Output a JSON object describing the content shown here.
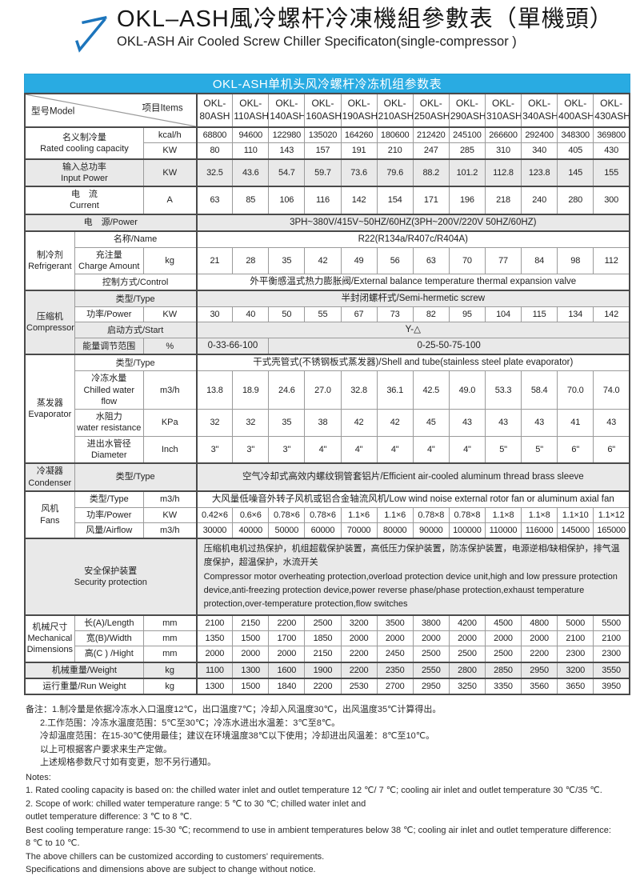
{
  "header": {
    "title_cn": "OKL–ASH風冷螺杆冷凍機組參數表（單機頭）",
    "title_en": "OKL-ASH Air Cooled Screw Chiller Specificaton(single-compressor )",
    "logo_icon": "arrow-up-right-icon"
  },
  "colors": {
    "caption_bg": "#29abe2",
    "row_shade": "#e9e9e9",
    "grid_line": "#9b9b9b",
    "section_line": "#4a4a4a",
    "accent_blue": "#1c75bc"
  },
  "table": {
    "caption": "OKL-ASH单机头风冷螺杆冷冻机组参数表",
    "corner": {
      "model": "型号Model",
      "items": "项目Items"
    },
    "models": [
      "OKL-80ASH",
      "OKL-110ASH",
      "OKL-140ASH",
      "OKL-160ASH",
      "OKL-190ASH",
      "OKL-210ASH",
      "OKL-250ASH",
      "OKL-290ASH",
      "OKL-310ASH",
      "OKL-340ASH",
      "OKL-400ASH",
      "OKL-430ASH"
    ],
    "rows": [
      {
        "top": true,
        "cells": [
          {
            "t": "名义制冷量\nRated cooling capacity",
            "cs": 2,
            "rs": 2,
            "c": "lab"
          },
          {
            "t": "kcal/h",
            "c": "unit",
            "e": true
          }
        ],
        "values": [
          "68800",
          "94600",
          "122980",
          "135020",
          "164260",
          "180600",
          "212420",
          "245100",
          "266600",
          "292400",
          "348300",
          "369800"
        ]
      },
      {
        "cells": [
          {
            "t": "KW",
            "c": "unit",
            "e": true
          }
        ],
        "values": [
          "80",
          "110",
          "143",
          "157",
          "191",
          "210",
          "247",
          "285",
          "310",
          "340",
          "405",
          "430"
        ]
      },
      {
        "top": true,
        "shade": true,
        "cells": [
          {
            "t": "输入总功率\nInput Power",
            "cs": 2,
            "c": "lab"
          },
          {
            "t": "KW",
            "c": "unit",
            "e": true
          }
        ],
        "values": [
          "32.5",
          "43.6",
          "54.7",
          "59.7",
          "73.6",
          "79.6",
          "88.2",
          "101.2",
          "112.8",
          "123.8",
          "145",
          "155"
        ]
      },
      {
        "top": true,
        "cells": [
          {
            "t": "电　流\nCurrent",
            "cs": 2,
            "c": "lab"
          },
          {
            "t": "A",
            "c": "unit",
            "e": true
          }
        ],
        "values": [
          "63",
          "85",
          "106",
          "116",
          "142",
          "154",
          "171",
          "196",
          "218",
          "240",
          "280",
          "300"
        ]
      },
      {
        "top": true,
        "shade": true,
        "cells": [
          {
            "t": "电　源/Power",
            "cs": 3,
            "c": "lab",
            "e": true
          },
          {
            "t": "3PH~380V/415V~50HZ/60HZ(3PH~200V/220V 50HZ/60HZ)",
            "cs": 12,
            "c": "span"
          }
        ]
      },
      {
        "top": true,
        "cells": [
          {
            "t": "制冷剂\nRefrigerant",
            "rs": 3,
            "c": "sec"
          },
          {
            "t": "名称/Name",
            "cs": 2,
            "c": "lab",
            "e": true
          },
          {
            "t": "R22(R134a/R407c/R404A)",
            "cs": 12,
            "c": "span"
          }
        ]
      },
      {
        "cells": [
          {
            "t": "充注量\nCharge Amount",
            "c": "lab"
          },
          {
            "t": "kg",
            "c": "unit",
            "e": true
          }
        ],
        "values": [
          "21",
          "28",
          "35",
          "42",
          "49",
          "56",
          "63",
          "70",
          "77",
          "84",
          "98",
          "112"
        ]
      },
      {
        "cells": [
          {
            "t": "控制方式/Control",
            "cs": 2,
            "c": "lab",
            "e": true
          },
          {
            "t": "外平衡感温式热力膨胀阀/External balance temperature thermal expansion valve",
            "cs": 12,
            "c": "span"
          }
        ]
      },
      {
        "top": true,
        "shade": true,
        "cells": [
          {
            "t": "压缩机\nCompressor",
            "rs": 4,
            "c": "sec"
          },
          {
            "t": "类型/Type",
            "cs": 2,
            "c": "lab",
            "e": true
          },
          {
            "t": "半封闭螺杆式/Semi-hermetic screw",
            "cs": 12,
            "c": "span"
          }
        ]
      },
      {
        "cells": [
          {
            "t": "功率/Power",
            "c": "lab"
          },
          {
            "t": "KW",
            "c": "unit",
            "e": true
          }
        ],
        "values": [
          "30",
          "40",
          "50",
          "55",
          "67",
          "73",
          "82",
          "95",
          "104",
          "115",
          "134",
          "142"
        ]
      },
      {
        "shade": true,
        "cells": [
          {
            "t": "启动方式/Start",
            "cs": 2,
            "c": "lab",
            "e": true
          },
          {
            "t": "Y-△",
            "cs": 12,
            "c": "span"
          }
        ]
      },
      {
        "shade": true,
        "cells": [
          {
            "t": "能量调节范围",
            "c": "lab"
          },
          {
            "t": "%",
            "c": "unit",
            "e": true
          },
          {
            "t": "0-33-66-100",
            "cs": 2,
            "c": "span"
          },
          {
            "t": "0-25-50-75-100",
            "cs": 10,
            "c": "span"
          }
        ]
      },
      {
        "top": true,
        "cells": [
          {
            "t": "蒸发器\nEvaporator",
            "rs": 4,
            "c": "sec"
          },
          {
            "t": "类型/Type",
            "cs": 2,
            "c": "lab",
            "e": true
          },
          {
            "t": "干式壳管式(不锈钢板式蒸发器)/Shell and tube(stainless steel plate evaporator)",
            "cs": 12,
            "c": "span"
          }
        ]
      },
      {
        "cells": [
          {
            "t": "冷冻水量\nChilled water flow",
            "c": "lab"
          },
          {
            "t": "m3/h",
            "c": "unit",
            "e": true
          }
        ],
        "values": [
          "13.8",
          "18.9",
          "24.6",
          "27.0",
          "32.8",
          "36.1",
          "42.5",
          "49.0",
          "53.3",
          "58.4",
          "70.0",
          "74.0"
        ]
      },
      {
        "cells": [
          {
            "t": "水阻力\nwater resistance",
            "c": "lab"
          },
          {
            "t": "KPa",
            "c": "unit",
            "e": true
          }
        ],
        "values": [
          "32",
          "32",
          "35",
          "38",
          "42",
          "42",
          "45",
          "43",
          "43",
          "43",
          "41",
          "43"
        ]
      },
      {
        "cells": [
          {
            "t": "进出水管径\nDiameter",
            "c": "lab"
          },
          {
            "t": "Inch",
            "c": "unit",
            "e": true
          }
        ],
        "values": [
          "3\"",
          "3\"",
          "3\"",
          "4\"",
          "4\"",
          "4\"",
          "4\"",
          "4\"",
          "5\"",
          "5\"",
          "6\"",
          "6\""
        ]
      },
      {
        "top": true,
        "shade": true,
        "cells": [
          {
            "t": "冷凝器\nCondenser",
            "c": "sec"
          },
          {
            "t": "类型/Type",
            "cs": 2,
            "c": "lab",
            "e": true
          },
          {
            "t": "空气冷却式高效内螺纹铜管套铝片/Efficient air-cooled aluminum thread brass sleeve",
            "cs": 12,
            "c": "span"
          }
        ]
      },
      {
        "top": true,
        "cells": [
          {
            "t": "风机\nFans",
            "rs": 3,
            "c": "sec"
          },
          {
            "t": "类型/Type",
            "c": "lab"
          },
          {
            "t": "m3/h",
            "c": "unit",
            "e": true
          },
          {
            "t": "大风量低噪音外转子风机或铝合金轴流风机/Low wind noise external rotor fan or aluminum axial fan",
            "cs": 12,
            "c": "span"
          }
        ]
      },
      {
        "cells": [
          {
            "t": "功率/Power",
            "c": "lab"
          },
          {
            "t": "KW",
            "c": "unit",
            "e": true
          }
        ],
        "values": [
          "0.42×6",
          "0.6×6",
          "0.78×6",
          "0.78×6",
          "1.1×6",
          "1.1×6",
          "0.78×8",
          "0.78×8",
          "1.1×8",
          "1.1×8",
          "1.1×10",
          "1.1×12"
        ]
      },
      {
        "cells": [
          {
            "t": "风量/Airflow",
            "c": "lab"
          },
          {
            "t": "m3/h",
            "c": "unit",
            "e": true
          }
        ],
        "values": [
          "30000",
          "40000",
          "50000",
          "60000",
          "70000",
          "80000",
          "90000",
          "100000",
          "110000",
          "116000",
          "145000",
          "165000"
        ]
      },
      {
        "top": true,
        "shade": true,
        "cells": [
          {
            "t": "安全保护装置\nSecurity protection",
            "cs": 3,
            "c": "lab",
            "e": true
          },
          {
            "t": "压缩机电机过热保护，机组超载保护装置，高低压力保护装置，防冻保护装置，电源逆相/缺相保护，排气温度保护，超温保护，水流开关\nCompressor motor overheating protection,overload protection device unit,high and low pressure protection device,anti-freezing protection device,power reverse phase/phase protection,exhaust temperature protection,over-temperature protection,flow switches",
            "cs": 12,
            "c": "txt"
          }
        ]
      },
      {
        "top": true,
        "cells": [
          {
            "t": "机械尺寸\nMechanical\nDimensions",
            "rs": 3,
            "c": "sec"
          },
          {
            "t": "长(A)/Length",
            "c": "lab"
          },
          {
            "t": "mm",
            "c": "unit",
            "e": true
          }
        ],
        "values": [
          "2100",
          "2150",
          "2200",
          "2500",
          "3200",
          "3500",
          "3800",
          "4200",
          "4500",
          "4800",
          "5000",
          "5500"
        ]
      },
      {
        "cells": [
          {
            "t": "宽(B)/Width",
            "c": "lab"
          },
          {
            "t": "mm",
            "c": "unit",
            "e": true
          }
        ],
        "values": [
          "1350",
          "1500",
          "1700",
          "1850",
          "2000",
          "2000",
          "2000",
          "2000",
          "2000",
          "2000",
          "2100",
          "2100"
        ]
      },
      {
        "cells": [
          {
            "t": "高(C ) /Hight",
            "c": "lab"
          },
          {
            "t": "mm",
            "c": "unit",
            "e": true
          }
        ],
        "values": [
          "2000",
          "2000",
          "2000",
          "2150",
          "2200",
          "2450",
          "2500",
          "2500",
          "2500",
          "2200",
          "2300",
          "2300"
        ]
      },
      {
        "top": true,
        "shade": true,
        "cells": [
          {
            "t": "机械重量/Weight",
            "cs": 2,
            "c": "lab"
          },
          {
            "t": "kg",
            "c": "unit",
            "e": true
          }
        ],
        "values": [
          "1100",
          "1300",
          "1600",
          "1900",
          "2200",
          "2350",
          "2550",
          "2800",
          "2850",
          "2950",
          "3200",
          "3550"
        ]
      },
      {
        "top": true,
        "cells": [
          {
            "t": "运行重量/Run Weight",
            "cs": 2,
            "c": "lab"
          },
          {
            "t": "kg",
            "c": "unit",
            "e": true
          }
        ],
        "values": [
          "1300",
          "1500",
          "1840",
          "2200",
          "2530",
          "2700",
          "2950",
          "3250",
          "3350",
          "3560",
          "3650",
          "3950"
        ]
      }
    ]
  },
  "notes_cn": [
    "备注：1.制冷量是依据冷冻水入口温度12℃，出口温度7℃；冷却入风温度30℃，出风温度35℃计算得出。",
    "2.工作范围：冷冻水温度范围：5℃至30℃；冷冻水进出水温差：3℃至8℃。",
    "冷却温度范围：在15-30℃使用最佳；建议在环境温度38℃以下使用；冷却进出风温差：8℃至10℃。",
    "以上可根据客户要求来生产定做。",
    "上述规格参数尺寸如有变更，恕不另行通知。"
  ],
  "notes_en_title": "Notes:",
  "notes_en": [
    "1. Rated cooling capacity is based on: the chilled water inlet and outlet temperature 12 ℃/ 7 ℃; cooling air inlet and outlet temperature 30 ℃/35 ℃.",
    "2. Scope of work: chilled water temperature range: 5 ℃ to 30 ℃; chilled water inlet and",
    "outlet temperature difference: 3 ℃ to 8 ℃.",
    "Best cooling temperature range: 15-30 ℃; recommend to use in ambient temperatures below 38 ℃; cooling air inlet and outlet temperature difference: 8 ℃ to 10 ℃.",
    "The above chillers can be customized according to customers'  requirements.",
    "Specifications and dimensions above are subject to change without notice."
  ]
}
